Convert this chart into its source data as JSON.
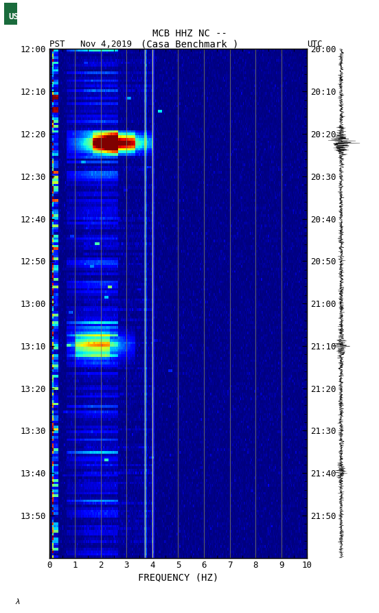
{
  "title_line1": "MCB HHZ NC --",
  "title_line2": "(Casa Benchmark )",
  "left_label": "PST   Nov 4,2019",
  "right_label": "UTC",
  "left_yticks": [
    "12:00",
    "12:10",
    "12:20",
    "12:30",
    "12:40",
    "12:50",
    "13:00",
    "13:10",
    "13:20",
    "13:30",
    "13:40",
    "13:50"
  ],
  "right_yticks": [
    "20:00",
    "20:10",
    "20:20",
    "20:30",
    "20:40",
    "20:50",
    "21:00",
    "21:10",
    "21:20",
    "21:30",
    "21:40",
    "21:50"
  ],
  "xlabel": "FREQUENCY (HZ)",
  "xticks": [
    0,
    1,
    2,
    3,
    4,
    5,
    6,
    7,
    8,
    9,
    10
  ],
  "freq_lines": [
    1,
    2,
    3,
    4,
    5,
    6,
    7,
    8,
    9
  ],
  "highlight_freq_lines": [
    3.7,
    4.0
  ],
  "xmin": 0,
  "xmax": 10,
  "background_color": "#ffffff",
  "plot_bg": "#000080",
  "usgs_green": "#1a6b3c",
  "colormap": "jet"
}
